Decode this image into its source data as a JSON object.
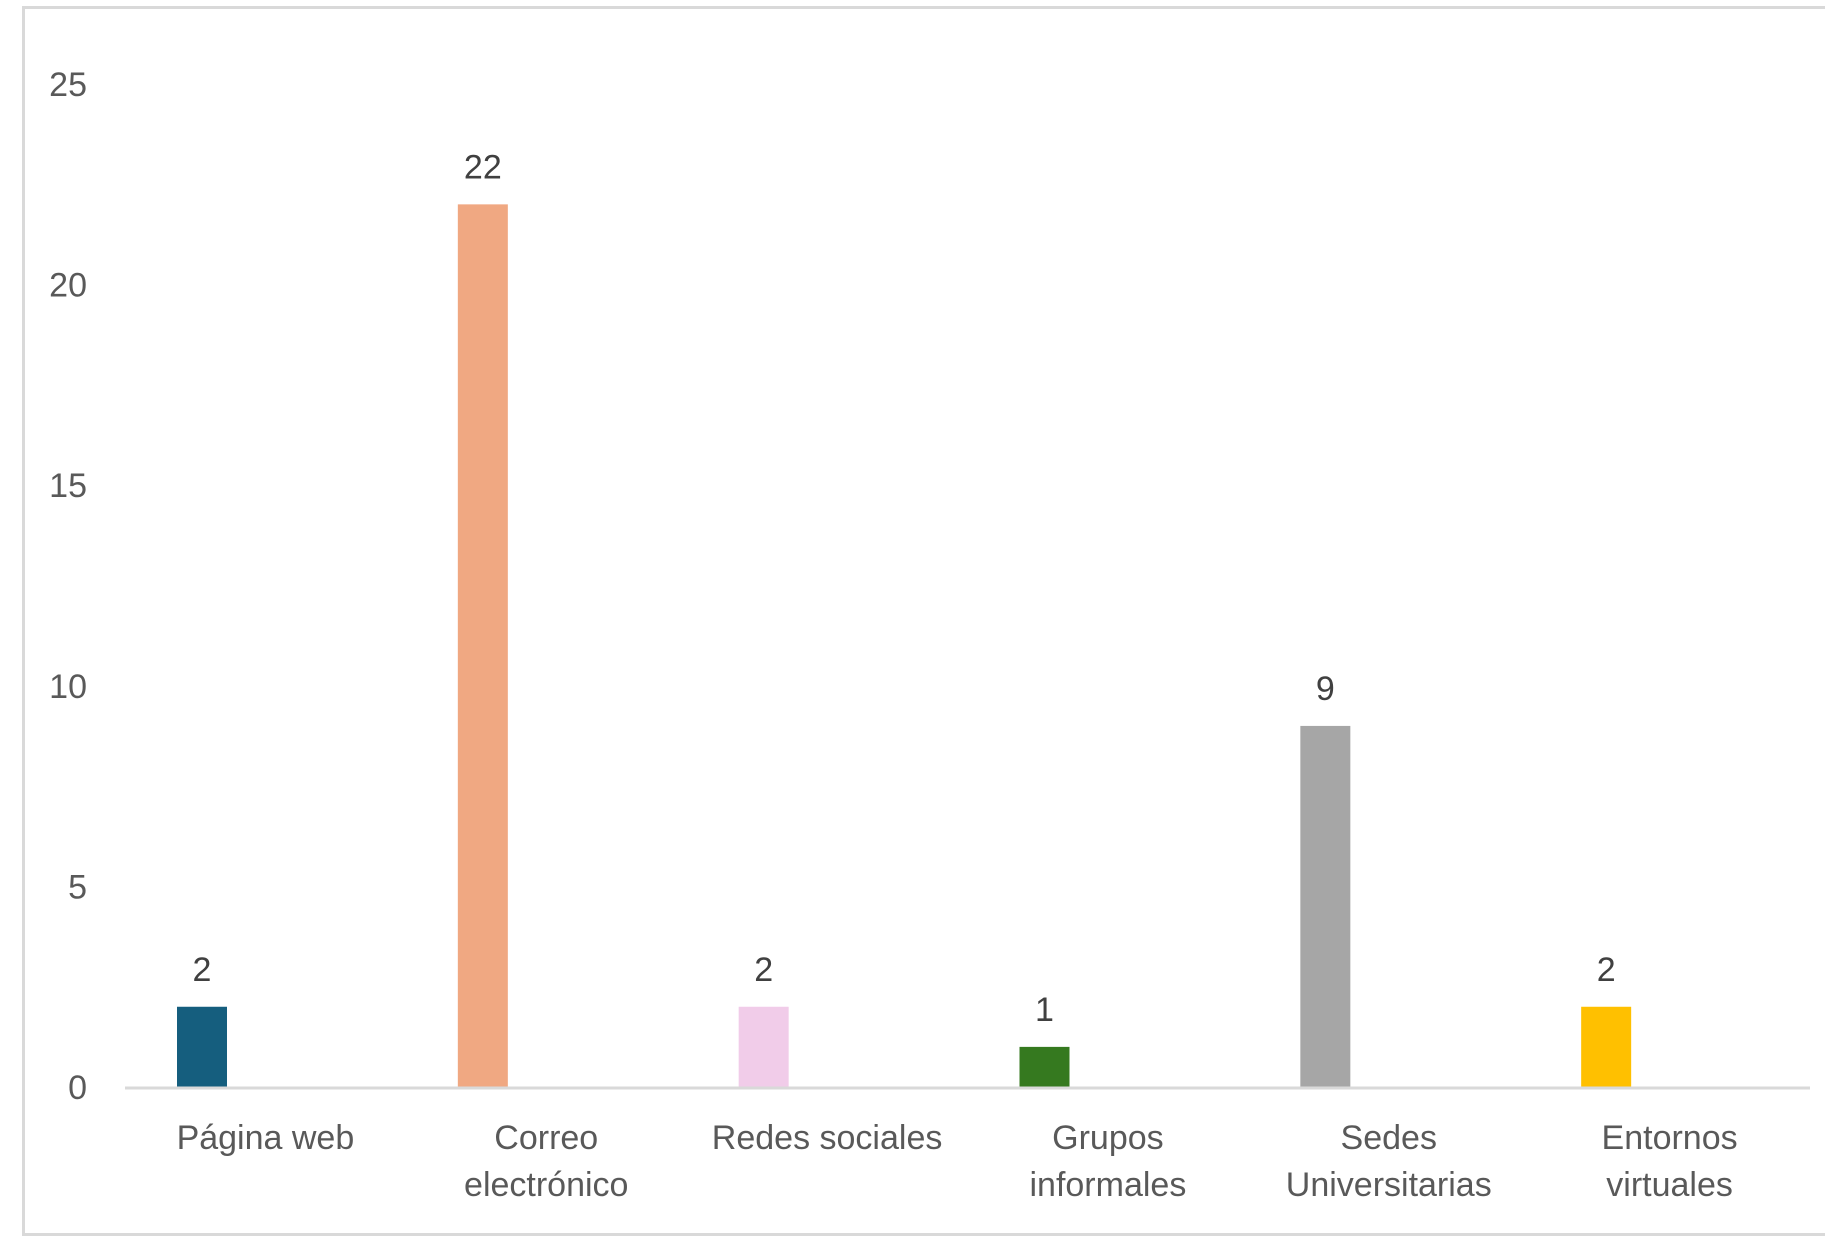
{
  "chart_data": {
    "type": "bar",
    "title": "",
    "xlabel": "",
    "ylabel": "",
    "ylim": [
      0,
      25
    ],
    "yticks": [
      0,
      5,
      10,
      15,
      20,
      25
    ],
    "grid": false,
    "legend": "none",
    "categories": [
      [
        "Página web"
      ],
      [
        "Correo",
        "electrónico"
      ],
      [
        "Redes sociales"
      ],
      [
        "Grupos",
        "informales"
      ],
      [
        "Sedes",
        "Universitarias"
      ],
      [
        "Entornos",
        "virtuales"
      ]
    ],
    "values": [
      2,
      22,
      2,
      1,
      9,
      2
    ],
    "colors": [
      "#155e7e",
      "#f0a882",
      "#f1cce9",
      "#35791f",
      "#a6a6a6",
      "#ffc000"
    ],
    "axis_color": "#d9d9d9"
  }
}
